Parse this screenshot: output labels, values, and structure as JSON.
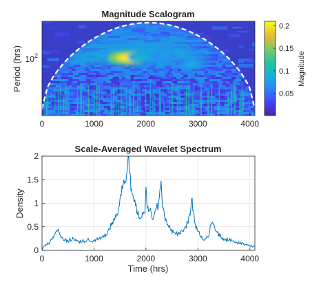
{
  "chart_data": [
    {
      "type": "heatmap",
      "title": "Magnitude Scalogram",
      "xlabel": "",
      "ylabel": "Period (hrs)",
      "xlim": [
        0,
        4096
      ],
      "x_ticks": [
        0,
        1000,
        2000,
        3000,
        4000
      ],
      "y_scale": "log",
      "y_ticks": [
        {
          "value": 100,
          "base": "10",
          "exponent": "2"
        }
      ],
      "colorbar": {
        "label": "Magnitude",
        "range": [
          0,
          0.21
        ],
        "ticks": [
          0.05,
          0.1,
          0.15,
          0.2
        ],
        "colormap": "parula"
      },
      "cone_of_influence": "white dashed boundary",
      "features": [
        {
          "time": 1650,
          "period": 110,
          "magnitude": 0.2
        },
        {
          "time": 1900,
          "period": 115,
          "magnitude": 0.1
        },
        {
          "time": 2350,
          "period": 125,
          "magnitude": 0.08
        },
        {
          "time": 2880,
          "period": 70,
          "magnitude": 0.09
        },
        {
          "time": 300,
          "period": 60,
          "magnitude": 0.07
        }
      ]
    },
    {
      "type": "line",
      "title": "Scale-Averaged Wavelet Spectrum",
      "xlabel": "Time (hrs)",
      "ylabel": "Density",
      "xlim": [
        0,
        4096
      ],
      "ylim": [
        0,
        2
      ],
      "x_ticks": [
        0,
        1000,
        2000,
        3000,
        4000
      ],
      "y_ticks": [
        0,
        0.5,
        1,
        1.5,
        2
      ],
      "grid": true,
      "line_color": "#0072bd",
      "series": [
        {
          "x": [
            0,
            50,
            100,
            150,
            200,
            250,
            300,
            330,
            380,
            430,
            500,
            600,
            700,
            800,
            900,
            1000,
            1100,
            1200,
            1300,
            1350,
            1400,
            1450,
            1500,
            1550,
            1600,
            1640,
            1670,
            1690,
            1720,
            1760,
            1800,
            1860,
            1920,
            1980,
            2000,
            2030,
            2060,
            2100,
            2130,
            2160,
            2200,
            2240,
            2270,
            2290,
            2320,
            2360,
            2420,
            2480,
            2550,
            2640,
            2720,
            2800,
            2850,
            2880,
            2910,
            2950,
            3000,
            3050,
            3120,
            3200,
            3250,
            3280,
            3320,
            3360,
            3420,
            3500,
            3600,
            3700,
            3800,
            3900,
            4000,
            4096
          ],
          "y": [
            0.05,
            0.1,
            0.12,
            0.18,
            0.25,
            0.35,
            0.42,
            0.38,
            0.28,
            0.22,
            0.2,
            0.25,
            0.18,
            0.2,
            0.22,
            0.2,
            0.25,
            0.3,
            0.45,
            0.6,
            0.65,
            0.75,
            1.1,
            1.3,
            1.45,
            1.7,
            1.95,
            1.65,
            1.3,
            1.1,
            0.95,
            0.75,
            0.7,
            0.8,
            1.35,
            0.9,
            0.85,
            0.8,
            0.65,
            0.75,
            0.9,
            0.95,
            1.3,
            1.48,
            0.9,
            0.7,
            0.55,
            0.42,
            0.38,
            0.35,
            0.4,
            0.6,
            0.75,
            1.1,
            0.85,
            0.55,
            0.4,
            0.3,
            0.22,
            0.28,
            0.55,
            0.6,
            0.5,
            0.4,
            0.3,
            0.25,
            0.22,
            0.18,
            0.15,
            0.12,
            0.1,
            0.08
          ]
        }
      ]
    }
  ]
}
